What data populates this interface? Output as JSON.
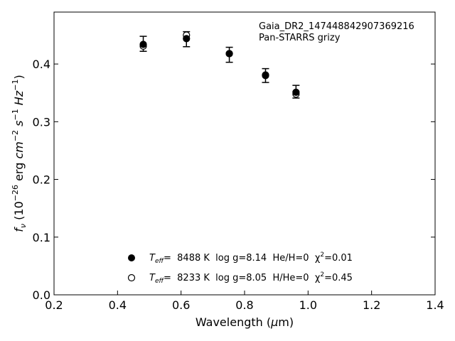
{
  "chart_data": {
    "type": "scatter",
    "annotation_lines": [
      "Gaia_DR2_147448842907369216",
      "Pan-STARRS grizy"
    ],
    "xlabel": "Wavelength (μm)",
    "ylabel": "f_ν (10^-26 erg cm^-2 s^-1 Hz^-1)",
    "xlim": [
      0.2,
      1.4
    ],
    "ylim": [
      0.0,
      0.49
    ],
    "xticks": [
      "0.2",
      "0.4",
      "0.6",
      "0.8",
      "1.0",
      "1.2",
      "1.4"
    ],
    "yticks": [
      "0.0",
      "0.1",
      "0.2",
      "0.3",
      "0.4"
    ],
    "grid": false,
    "legend_position": "bottom-center",
    "observed": {
      "x": [
        0.481,
        0.617,
        0.752,
        0.866,
        0.962
      ],
      "y": [
        0.435,
        0.443,
        0.416,
        0.38,
        0.352
      ],
      "yerr": [
        0.013,
        0.013,
        0.013,
        0.012,
        0.011
      ]
    },
    "series": [
      {
        "name": "T_eff= 8488 K  log g=8.14  He/H=0  χ²=0.01",
        "marker": "filled-circle",
        "x": [
          0.481,
          0.617,
          0.752,
          0.866,
          0.962
        ],
        "y": [
          0.434,
          0.444,
          0.418,
          0.381,
          0.351
        ]
      },
      {
        "name": "T_eff= 8233 K  log g=8.05  H/He=0  χ²=0.45",
        "marker": "open-circle",
        "x": [
          0.481,
          0.617,
          0.752,
          0.866,
          0.962
        ],
        "y": [
          0.431,
          0.45,
          0.418,
          0.38,
          0.348
        ]
      }
    ],
    "legend": [
      {
        "prefix": "T",
        "sub": "eff",
        "text": "=  8488 K  log g=8.14  He/H=0  χ",
        "sup": "2",
        "suffix": "=0.01"
      },
      {
        "prefix": "T",
        "sub": "eff",
        "text": "=  8233 K  log g=8.05  H/He=0  χ",
        "sup": "2",
        "suffix": "=0.45"
      }
    ]
  }
}
